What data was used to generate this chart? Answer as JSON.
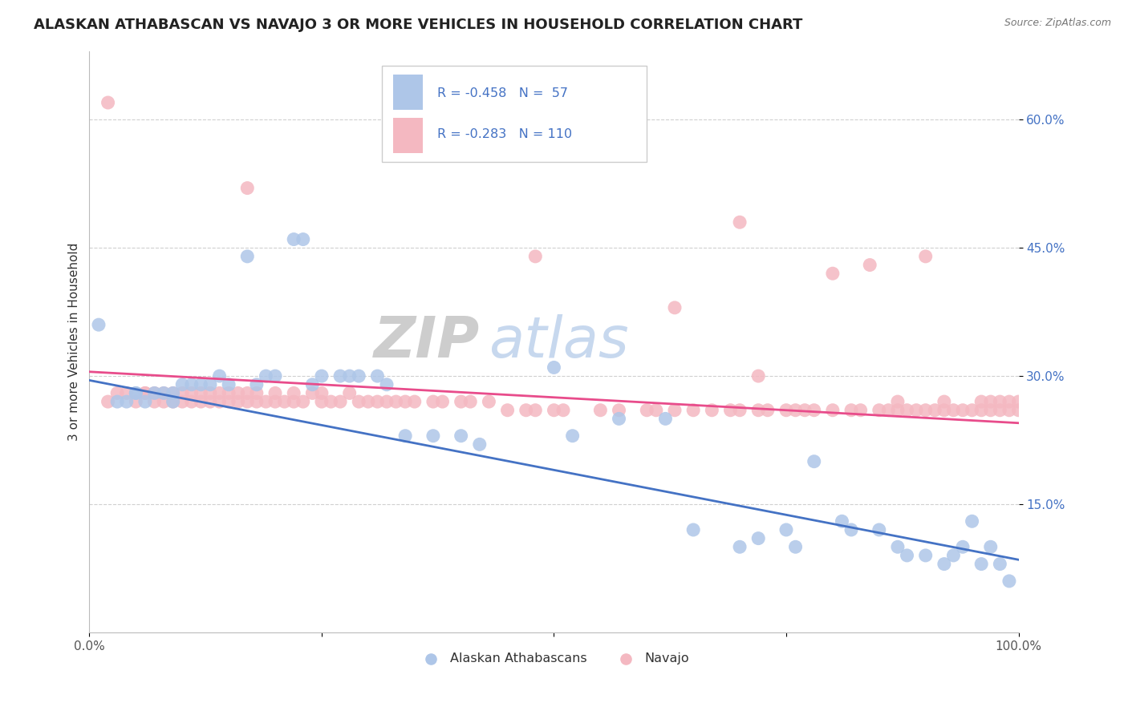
{
  "title": "ALASKAN ATHABASCAN VS NAVAJO 3 OR MORE VEHICLES IN HOUSEHOLD CORRELATION CHART",
  "source": "Source: ZipAtlas.com",
  "ylabel": "3 or more Vehicles in Household",
  "xlim": [
    0.0,
    1.0
  ],
  "ylim": [
    0.0,
    0.68
  ],
  "legend_entries": [
    {
      "label": "Alaskan Athabascans",
      "color": "#aec6e8",
      "R": "-0.458",
      "N": "57"
    },
    {
      "label": "Navajo",
      "color": "#f4b8c1",
      "R": "-0.283",
      "N": "110"
    }
  ],
  "blue_scatter_x": [
    0.01,
    0.03,
    0.04,
    0.05,
    0.05,
    0.06,
    0.07,
    0.08,
    0.09,
    0.09,
    0.1,
    0.11,
    0.12,
    0.13,
    0.14,
    0.15,
    0.17,
    0.18,
    0.19,
    0.2,
    0.22,
    0.23,
    0.24,
    0.25,
    0.27,
    0.28,
    0.29,
    0.31,
    0.32,
    0.34,
    0.37,
    0.4,
    0.42,
    0.5,
    0.52,
    0.57,
    0.62,
    0.65,
    0.7,
    0.72,
    0.75,
    0.76,
    0.78,
    0.81,
    0.82,
    0.85,
    0.87,
    0.88,
    0.9,
    0.92,
    0.93,
    0.94,
    0.95,
    0.96,
    0.97,
    0.98,
    0.99
  ],
  "blue_scatter_y": [
    0.36,
    0.27,
    0.27,
    0.28,
    0.28,
    0.27,
    0.28,
    0.28,
    0.27,
    0.28,
    0.29,
    0.29,
    0.29,
    0.29,
    0.3,
    0.29,
    0.44,
    0.29,
    0.3,
    0.3,
    0.46,
    0.46,
    0.29,
    0.3,
    0.3,
    0.3,
    0.3,
    0.3,
    0.29,
    0.23,
    0.23,
    0.23,
    0.22,
    0.31,
    0.23,
    0.25,
    0.25,
    0.12,
    0.1,
    0.11,
    0.12,
    0.1,
    0.2,
    0.13,
    0.12,
    0.12,
    0.1,
    0.09,
    0.09,
    0.08,
    0.09,
    0.1,
    0.13,
    0.08,
    0.1,
    0.08,
    0.06
  ],
  "pink_scatter_x": [
    0.02,
    0.03,
    0.04,
    0.05,
    0.06,
    0.06,
    0.07,
    0.07,
    0.08,
    0.08,
    0.09,
    0.09,
    0.1,
    0.1,
    0.11,
    0.11,
    0.12,
    0.12,
    0.13,
    0.13,
    0.14,
    0.14,
    0.15,
    0.15,
    0.16,
    0.16,
    0.17,
    0.17,
    0.18,
    0.18,
    0.19,
    0.2,
    0.2,
    0.21,
    0.22,
    0.22,
    0.23,
    0.24,
    0.25,
    0.25,
    0.26,
    0.27,
    0.28,
    0.29,
    0.3,
    0.31,
    0.32,
    0.33,
    0.34,
    0.35,
    0.37,
    0.38,
    0.4,
    0.41,
    0.43,
    0.45,
    0.47,
    0.48,
    0.5,
    0.51,
    0.55,
    0.57,
    0.6,
    0.61,
    0.63,
    0.65,
    0.67,
    0.69,
    0.7,
    0.72,
    0.73,
    0.75,
    0.76,
    0.77,
    0.78,
    0.8,
    0.82,
    0.83,
    0.85,
    0.86,
    0.87,
    0.88,
    0.89,
    0.9,
    0.91,
    0.92,
    0.93,
    0.94,
    0.95,
    0.96,
    0.97,
    0.97,
    0.98,
    0.98,
    0.99,
    0.99,
    1.0,
    1.0,
    0.02,
    0.17,
    0.48,
    0.63,
    0.7,
    0.72,
    0.8,
    0.84,
    0.87,
    0.9,
    0.92,
    0.96
  ],
  "pink_scatter_y": [
    0.27,
    0.28,
    0.28,
    0.27,
    0.28,
    0.28,
    0.27,
    0.28,
    0.27,
    0.28,
    0.27,
    0.28,
    0.28,
    0.27,
    0.28,
    0.27,
    0.28,
    0.27,
    0.27,
    0.28,
    0.27,
    0.28,
    0.27,
    0.28,
    0.27,
    0.28,
    0.27,
    0.28,
    0.27,
    0.28,
    0.27,
    0.27,
    0.28,
    0.27,
    0.27,
    0.28,
    0.27,
    0.28,
    0.27,
    0.28,
    0.27,
    0.27,
    0.28,
    0.27,
    0.27,
    0.27,
    0.27,
    0.27,
    0.27,
    0.27,
    0.27,
    0.27,
    0.27,
    0.27,
    0.27,
    0.26,
    0.26,
    0.26,
    0.26,
    0.26,
    0.26,
    0.26,
    0.26,
    0.26,
    0.26,
    0.26,
    0.26,
    0.26,
    0.26,
    0.26,
    0.26,
    0.26,
    0.26,
    0.26,
    0.26,
    0.26,
    0.26,
    0.26,
    0.26,
    0.26,
    0.26,
    0.26,
    0.26,
    0.26,
    0.26,
    0.26,
    0.26,
    0.26,
    0.26,
    0.26,
    0.26,
    0.27,
    0.26,
    0.27,
    0.26,
    0.27,
    0.26,
    0.27,
    0.62,
    0.52,
    0.44,
    0.38,
    0.48,
    0.3,
    0.42,
    0.43,
    0.27,
    0.44,
    0.27,
    0.27
  ],
  "blue_line_y_start": 0.295,
  "blue_line_y_end": 0.085,
  "pink_line_y_start": 0.305,
  "pink_line_y_end": 0.245,
  "blue_line_color": "#4472c4",
  "pink_line_color": "#e84c8b",
  "blue_scatter_color": "#aec6e8",
  "pink_scatter_color": "#f4b8c1",
  "watermark_zip": "ZIP",
  "watermark_atlas": "atlas",
  "grid_color": "#d0d0d0",
  "title_fontsize": 13,
  "label_fontsize": 11,
  "tick_fontsize": 11,
  "scatter_size": 150
}
